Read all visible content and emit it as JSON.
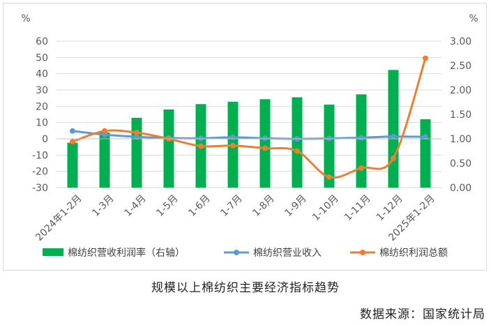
{
  "chart_data": {
    "type": "bar+line",
    "categories": [
      "2024年1-2月",
      "1-3月",
      "1-4月",
      "1-5月",
      "1-6月",
      "1-7月",
      "1-8月",
      "1-9月",
      "1-10月",
      "1-11月",
      "1-12月",
      "2025年1-2月"
    ],
    "y_left": {
      "unit": "%",
      "min": -30,
      "max": 60,
      "ticks": [
        60,
        50,
        40,
        30,
        20,
        10,
        0,
        -10,
        -20,
        -30
      ]
    },
    "y_right": {
      "unit": "%",
      "min": 0,
      "max": 3,
      "ticks": [
        "3.00",
        "2.50",
        "2.00",
        "1.50",
        "1.00",
        "0.50",
        "0.00"
      ]
    },
    "series": [
      {
        "name": "棉纺织营收利润率（右轴）",
        "type": "bar",
        "axis": "right",
        "color": "#00b050",
        "values": [
          0.92,
          1.13,
          1.43,
          1.6,
          1.71,
          1.76,
          1.81,
          1.85,
          1.7,
          1.91,
          2.41,
          1.4
        ]
      },
      {
        "name": "棉纺织营业收入",
        "type": "line",
        "axis": "left",
        "color": "#5b9bd5",
        "values": [
          4.8,
          2.5,
          1.2,
          0.5,
          0.3,
          0.9,
          0.3,
          0.0,
          0.2,
          0.7,
          1.4,
          1.2
        ]
      },
      {
        "name": "棉纺织利润总额",
        "type": "line",
        "axis": "left",
        "color": "#ed7d31",
        "values": [
          -1.8,
          4.8,
          3.8,
          0.0,
          -4.5,
          -4.2,
          -5.8,
          -7.5,
          -23.5,
          -18.0,
          -12.0,
          49.5
        ]
      }
    ]
  },
  "caption": "规模以上棉纺织主要经济指标趋势",
  "source": "数据来源：国家统计局"
}
